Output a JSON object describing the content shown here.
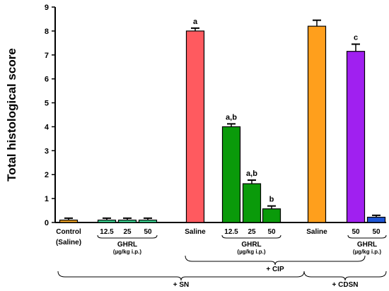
{
  "chart_data": {
    "type": "bar",
    "ylabel": "Total histological score",
    "ylim": [
      0,
      9
    ],
    "yticks": [
      0,
      1,
      2,
      3,
      4,
      5,
      6,
      7,
      8,
      9
    ],
    "bars": [
      {
        "label": "Control (Saline)",
        "value": 0.1,
        "error": 0.08,
        "color": "#F5A623",
        "annotation": ""
      },
      {
        "label": "12.5",
        "value": 0.1,
        "error": 0.08,
        "color": "#3DDC97",
        "annotation": ""
      },
      {
        "label": "25",
        "value": 0.1,
        "error": 0.08,
        "color": "#3DDC97",
        "annotation": ""
      },
      {
        "label": "50",
        "value": 0.1,
        "error": 0.08,
        "color": "#3DDC97",
        "annotation": ""
      },
      {
        "label": "Saline",
        "value": 8.0,
        "error": 0.12,
        "color": "#FF5A5F",
        "annotation": "a"
      },
      {
        "label": "12.5",
        "value": 4.0,
        "error": 0.12,
        "color": "#0A9A0A",
        "annotation": "a,b"
      },
      {
        "label": "25",
        "value": 1.62,
        "error": 0.15,
        "color": "#0A9A0A",
        "annotation": "a,b"
      },
      {
        "label": "50",
        "value": 0.57,
        "error": 0.12,
        "color": "#0A9A0A",
        "annotation": "b"
      },
      {
        "label": "Saline",
        "value": 8.2,
        "error": 0.25,
        "color": "#FF9F1C",
        "annotation": ""
      },
      {
        "label": "50",
        "value": 7.15,
        "error": 0.3,
        "color": "#A020F0",
        "annotation": "c"
      },
      {
        "label": "50",
        "value": 0.22,
        "error": 0.08,
        "color": "#1E56D6",
        "annotation": ""
      }
    ],
    "group_labels": [
      {
        "main": "GHRL",
        "sub": "(µg/kg i.p.)"
      },
      {
        "main": "GHRL",
        "sub": "(µg/kg i.p.)"
      },
      {
        "main": "GHRL",
        "sub": "(µg/kg i.p.)"
      }
    ],
    "braces": {
      "cip": "+ CIP",
      "sn": "+ SN",
      "cdsn": "+ CDSN"
    }
  }
}
